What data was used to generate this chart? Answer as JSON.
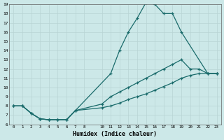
{
  "xlabel": "Humidex (Indice chaleur)",
  "bg_color": "#cce8e8",
  "grid_color": "#b8d4d4",
  "line_color": "#1a6b6b",
  "xlim": [
    -0.5,
    23.5
  ],
  "ylim": [
    6,
    19
  ],
  "xtick_vals": [
    0,
    1,
    2,
    3,
    4,
    5,
    6,
    7,
    8,
    10,
    11,
    12,
    13,
    14,
    15,
    16,
    17,
    18,
    19,
    20,
    21,
    22,
    23
  ],
  "ytick_vals": [
    6,
    7,
    8,
    9,
    10,
    11,
    12,
    13,
    14,
    15,
    16,
    17,
    18,
    19
  ],
  "line1_x": [
    0,
    1,
    2,
    3,
    4,
    5,
    6,
    7,
    11,
    12,
    13,
    14,
    15,
    16,
    17,
    18,
    19,
    22,
    23
  ],
  "line1_y": [
    8.0,
    8.0,
    7.2,
    6.6,
    6.5,
    6.5,
    6.5,
    7.5,
    11.5,
    14.0,
    16.0,
    17.5,
    19.2,
    19.0,
    18.0,
    18.0,
    16.0,
    11.5,
    11.5
  ],
  "line2_x": [
    0,
    1,
    2,
    3,
    4,
    5,
    6,
    7,
    10,
    11,
    12,
    13,
    14,
    15,
    16,
    17,
    18,
    19,
    20,
    21,
    22,
    23
  ],
  "line2_y": [
    8.0,
    8.0,
    7.2,
    6.6,
    6.5,
    6.5,
    6.5,
    7.5,
    8.2,
    9.0,
    9.5,
    10.0,
    10.5,
    11.0,
    11.5,
    12.0,
    12.5,
    13.0,
    12.0,
    12.0,
    11.5,
    11.5
  ],
  "line3_x": [
    0,
    1,
    2,
    3,
    4,
    5,
    6,
    7,
    10,
    11,
    12,
    13,
    14,
    15,
    16,
    17,
    18,
    19,
    20,
    21,
    22,
    23
  ],
  "line3_y": [
    8.0,
    8.0,
    7.2,
    6.6,
    6.5,
    6.5,
    6.5,
    7.5,
    7.8,
    8.0,
    8.3,
    8.7,
    9.0,
    9.3,
    9.7,
    10.1,
    10.5,
    11.0,
    11.3,
    11.5,
    11.5,
    11.5
  ]
}
